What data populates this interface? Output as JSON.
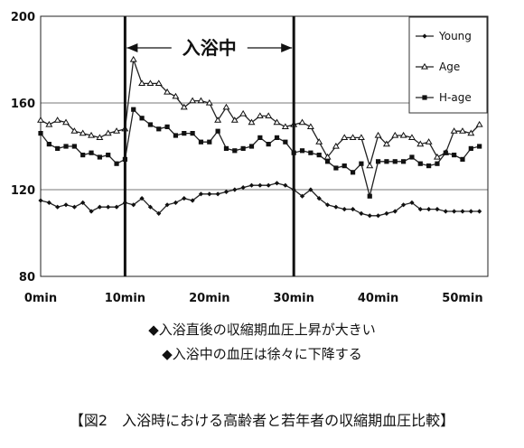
{
  "chart_data": {
    "type": "line",
    "title": "",
    "xlabel": "",
    "ylabel": "",
    "ylim": [
      80,
      200
    ],
    "xlim": [
      0,
      53
    ],
    "yticks": [
      80,
      120,
      160,
      200
    ],
    "xtick_labels": [
      "0min",
      "10min",
      "20min",
      "30min",
      "40min",
      "50min"
    ],
    "xtick_values": [
      0,
      10,
      20,
      30,
      40,
      50
    ],
    "grid": "horizontal lines at 120 and 160",
    "legend_position": "top-right",
    "period": {
      "start": 10,
      "end": 30,
      "label": "入浴中"
    },
    "x": [
      0,
      1,
      2,
      3,
      4,
      5,
      6,
      7,
      8,
      9,
      10,
      11,
      12,
      13,
      14,
      15,
      16,
      17,
      18,
      19,
      20,
      21,
      22,
      23,
      24,
      25,
      26,
      27,
      28,
      29,
      30,
      31,
      32,
      33,
      34,
      35,
      36,
      37,
      38,
      39,
      40,
      41,
      42,
      43,
      44,
      45,
      46,
      47,
      48,
      49,
      50,
      51,
      52
    ],
    "series": [
      {
        "name": "Young",
        "marker": "diamond",
        "values": [
          115,
          114,
          112,
          113,
          112,
          114,
          110,
          112,
          112,
          112,
          114,
          113,
          116,
          112,
          109,
          113,
          114,
          116,
          115,
          118,
          118,
          118,
          119,
          120,
          121,
          122,
          122,
          122,
          123,
          122,
          120,
          117,
          120,
          116,
          113,
          112,
          111,
          111,
          109,
          108,
          108,
          109,
          110,
          113,
          114,
          111,
          111,
          111,
          110,
          110,
          110,
          110,
          110
        ]
      },
      {
        "name": "Age",
        "marker": "triangle",
        "values": [
          152,
          150,
          152,
          151,
          147,
          146,
          145,
          144,
          146,
          147,
          148,
          180,
          169,
          169,
          169,
          165,
          163,
          158,
          161,
          161,
          160,
          152,
          158,
          152,
          155,
          151,
          154,
          154,
          151,
          149,
          150,
          151,
          149,
          142,
          135,
          140,
          144,
          144,
          144,
          131,
          145,
          141,
          145,
          145,
          144,
          141,
          142,
          135,
          137,
          147,
          147,
          146,
          150
        ]
      },
      {
        "name": "H-age",
        "marker": "square",
        "values": [
          146,
          141,
          139,
          140,
          140,
          136,
          137,
          135,
          136,
          132,
          134,
          157,
          153,
          150,
          148,
          149,
          145,
          146,
          146,
          142,
          142,
          147,
          139,
          138,
          139,
          140,
          144,
          141,
          144,
          142,
          137,
          138,
          137,
          136,
          133,
          130,
          131,
          128,
          132,
          117,
          133,
          133,
          133,
          133,
          135,
          132,
          131,
          132,
          137,
          136,
          134,
          139,
          140
        ]
      }
    ]
  },
  "notes": [
    "◆入浴直後の収縮期血圧上昇が大きい",
    "◆入浴中の血圧は徐々に下降する"
  ],
  "caption": "【図2　入浴時における高齢者と若年者の収縮期血圧比較】"
}
